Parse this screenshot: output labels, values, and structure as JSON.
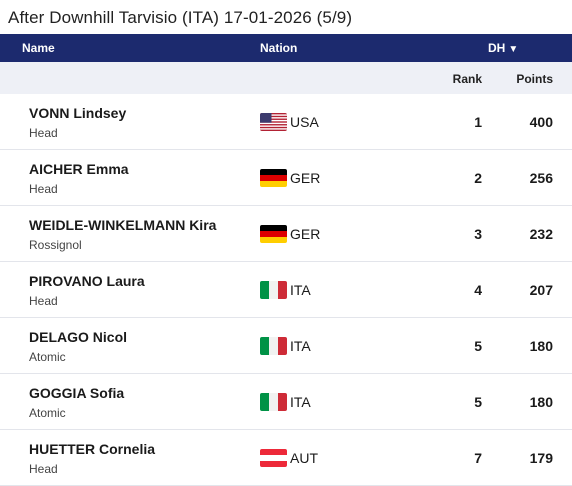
{
  "page": {
    "title": "After Downhill Tarvisio (ITA) 17-01-2026 (5/9)"
  },
  "table": {
    "columns": {
      "name": "Name",
      "nation": "Nation",
      "discipline": "DH",
      "discipline_arrow": "▼",
      "rank": "Rank",
      "points": "Points"
    },
    "rows": [
      {
        "name": "VONN Lindsey",
        "brand": "Head",
        "nation": "USA",
        "flag": "usa-flag-icon",
        "rank": "1",
        "points": "400"
      },
      {
        "name": "AICHER Emma",
        "brand": "Head",
        "nation": "GER",
        "flag": "germany-flag-icon",
        "rank": "2",
        "points": "256"
      },
      {
        "name": "WEIDLE-WINKELMANN Kira",
        "brand": "Rossignol",
        "nation": "GER",
        "flag": "germany-flag-icon",
        "rank": "3",
        "points": "232"
      },
      {
        "name": "PIROVANO Laura",
        "brand": "Head",
        "nation": "ITA",
        "flag": "italy-flag-icon",
        "rank": "4",
        "points": "207"
      },
      {
        "name": "DELAGO Nicol",
        "brand": "Atomic",
        "nation": "ITA",
        "flag": "italy-flag-icon",
        "rank": "5",
        "points": "180"
      },
      {
        "name": "GOGGIA Sofia",
        "brand": "Atomic",
        "nation": "ITA",
        "flag": "italy-flag-icon",
        "rank": "5",
        "points": "180"
      },
      {
        "name": "HUETTER Cornelia",
        "brand": "Head",
        "nation": "AUT",
        "flag": "austria-flag-icon",
        "rank": "7",
        "points": "179"
      }
    ]
  },
  "colors": {
    "header_bg": "#1c2a6e",
    "subheader_bg": "#eef0f6",
    "row_border": "#e3e5eb"
  }
}
